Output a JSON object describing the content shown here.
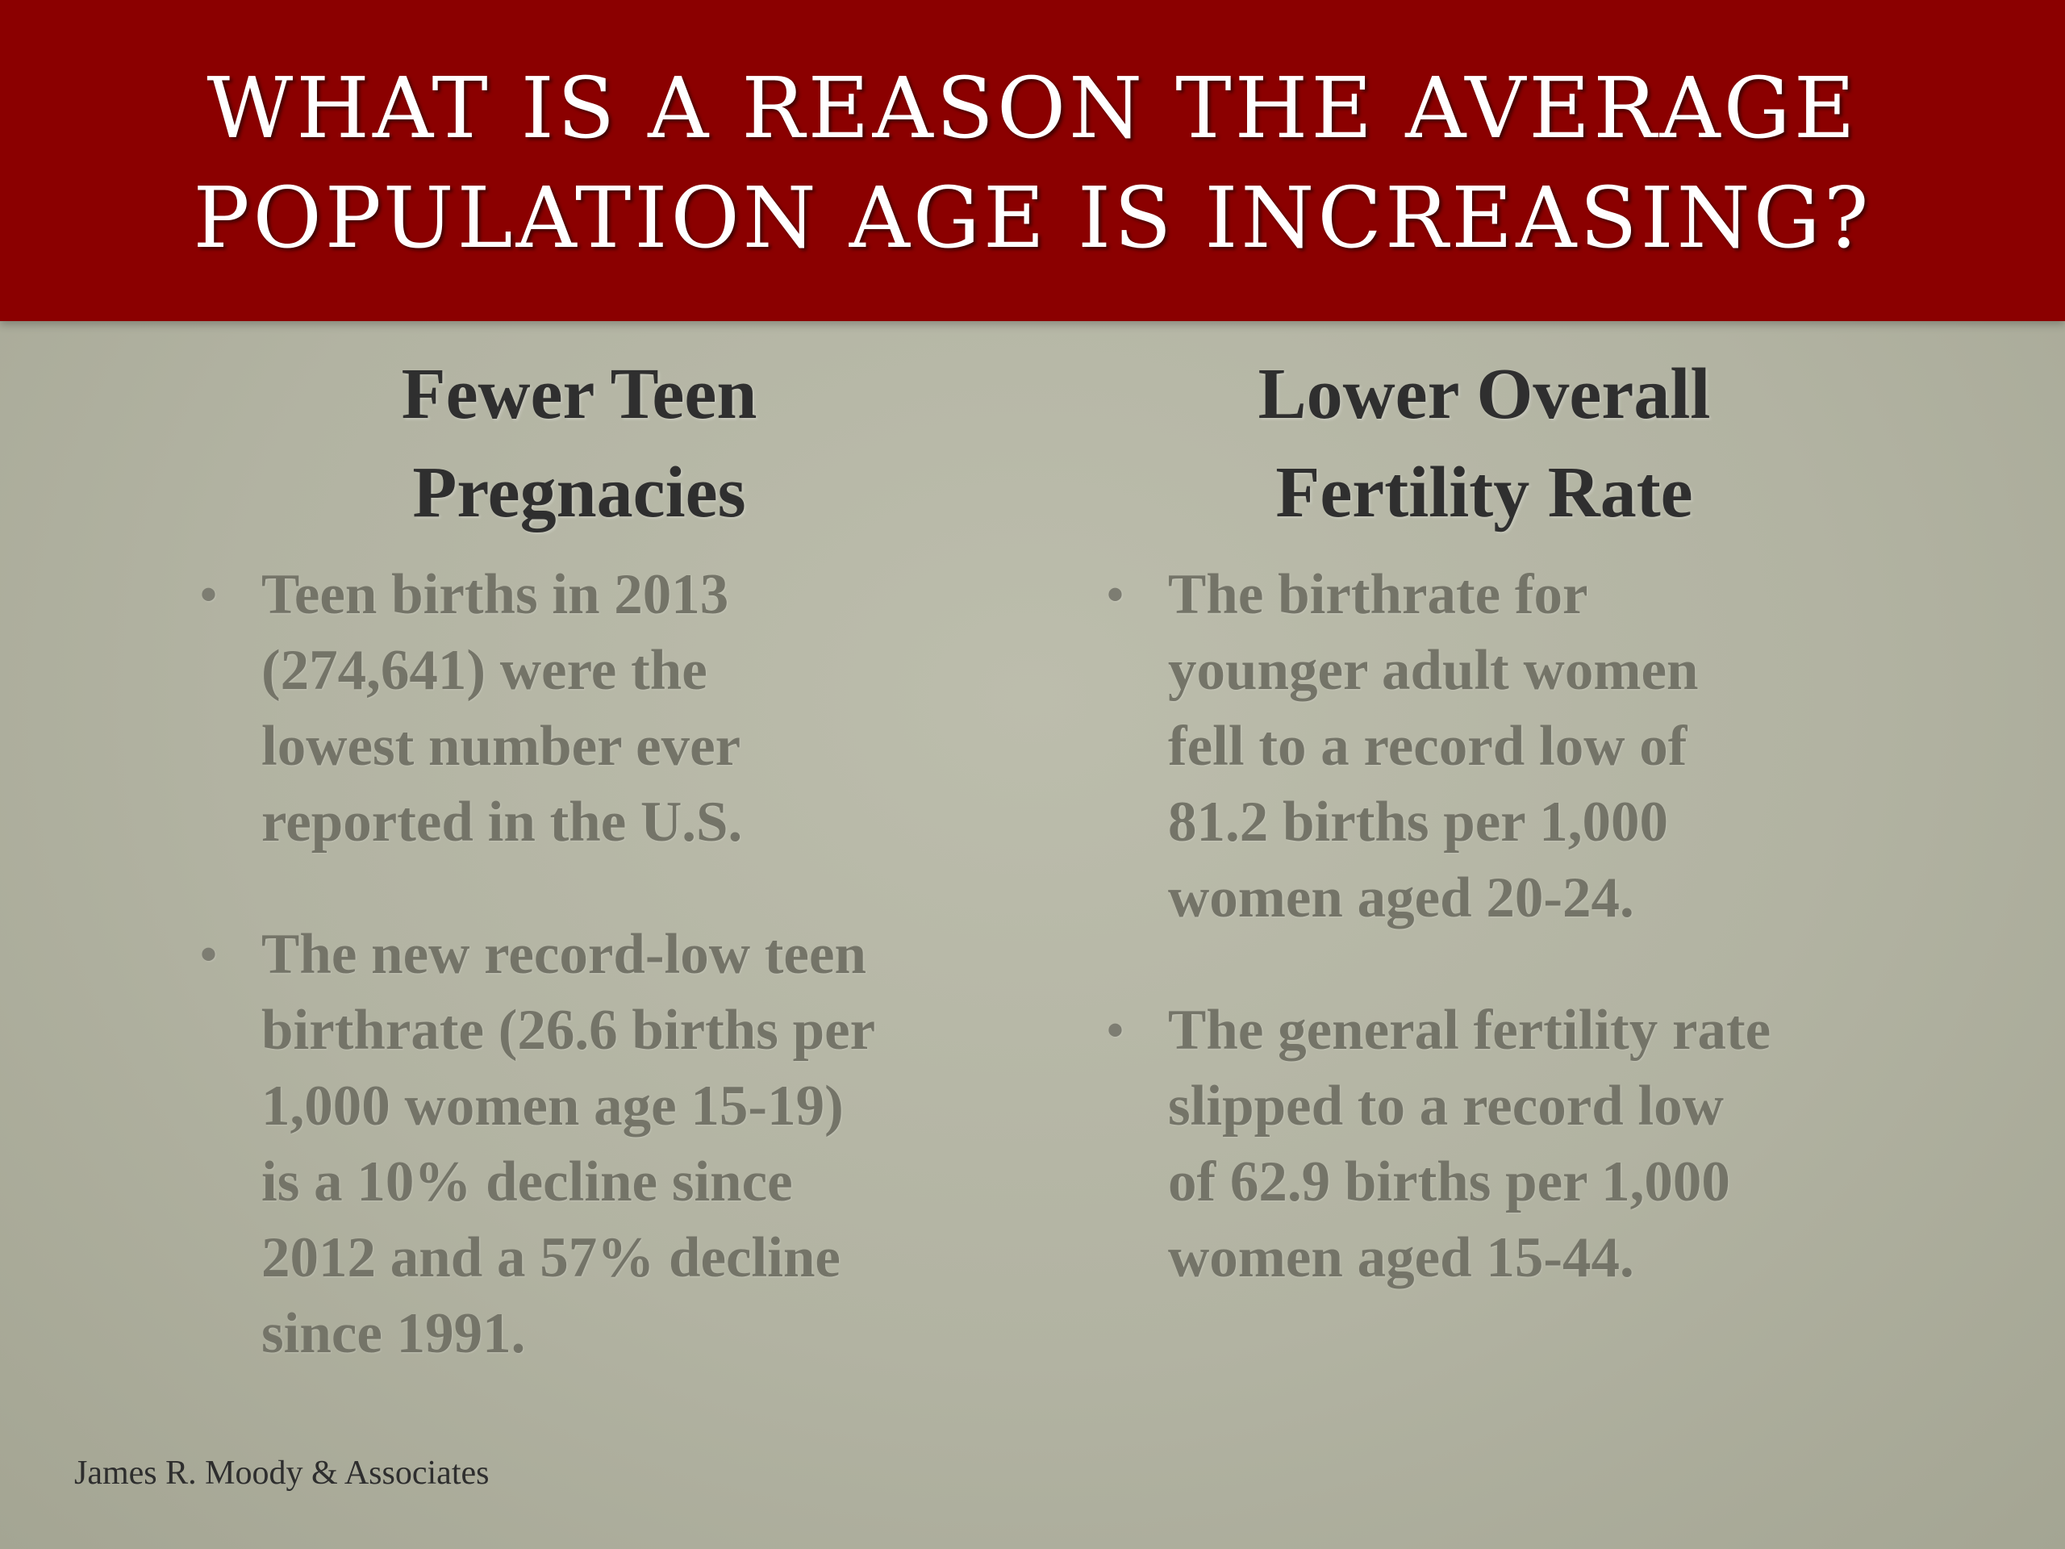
{
  "title": {
    "line1": "What is a reason the average",
    "line2": "population age is increasing?"
  },
  "left_column": {
    "heading_line1": "Fewer Teen",
    "heading_line2": "Pregnacies",
    "bullets": [
      {
        "lines": [
          "Teen births in 2013",
          "(274,641) were the",
          "lowest number ever",
          "reported in the U.S."
        ]
      },
      {
        "lines": [
          "The new record-low teen",
          "birthrate (26.6 births per",
          "1,000 women age 15-19)",
          "is a 10% decline since",
          "2012 and a 57% decline",
          "since 1991."
        ]
      }
    ]
  },
  "right_column": {
    "heading_line1": "Lower Overall",
    "heading_line2": "Fertility Rate",
    "bullets": [
      {
        "lines": [
          "The birthrate for",
          "younger adult women",
          "fell to a record low of",
          "81.2 births per 1,000",
          "women aged 20-24."
        ]
      },
      {
        "lines": [
          "The general fertility rate",
          "slipped to a record low",
          "of 62.9 births per 1,000",
          "women aged 15-44."
        ]
      }
    ]
  },
  "footer": {
    "text": "James R. Moody & Associates"
  },
  "bullet_glyph": "•",
  "colors": {
    "title_bar": "#8b0000",
    "background": "#b3b4a4",
    "heading_text": "#2f2f2f",
    "bullet_text": "#747468"
  }
}
